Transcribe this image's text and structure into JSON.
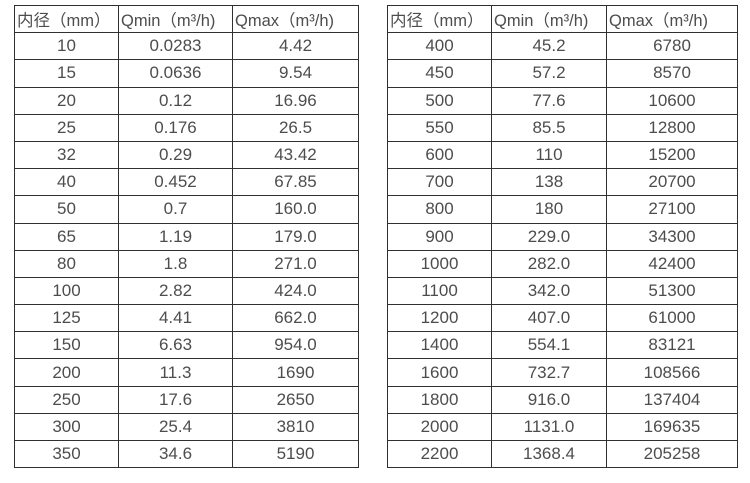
{
  "style": {
    "border_color": "#303030",
    "text_color": "#4d4d4d",
    "background_color": "#ffffff"
  },
  "tables": [
    {
      "name": "flow-table-small-diameters",
      "headers": [
        "内径（mm）",
        "Qmin（m³/h)",
        "Qmax（m³/h)"
      ],
      "rows": [
        [
          "10",
          "0.0283",
          "4.42"
        ],
        [
          "15",
          "0.0636",
          "9.54"
        ],
        [
          "20",
          "0.12",
          "16.96"
        ],
        [
          "25",
          "0.176",
          "26.5"
        ],
        [
          "32",
          "0.29",
          "43.42"
        ],
        [
          "40",
          "0.452",
          "67.85"
        ],
        [
          "50",
          "0.7",
          "160.0"
        ],
        [
          "65",
          "1.19",
          "179.0"
        ],
        [
          "80",
          "1.8",
          "271.0"
        ],
        [
          "100",
          "2.82",
          "424.0"
        ],
        [
          "125",
          "4.41",
          "662.0"
        ],
        [
          "150",
          "6.63",
          "954.0"
        ],
        [
          "200",
          "11.3",
          "1690"
        ],
        [
          "250",
          "17.6",
          "2650"
        ],
        [
          "300",
          "25.4",
          "3810"
        ],
        [
          "350",
          "34.6",
          "5190"
        ]
      ]
    },
    {
      "name": "flow-table-large-diameters",
      "headers": [
        "内径（mm）",
        "Qmin（m³/h)",
        "Qmax（m³/h)"
      ],
      "rows": [
        [
          "400",
          "45.2",
          "6780"
        ],
        [
          "450",
          "57.2",
          "8570"
        ],
        [
          "500",
          "77.6",
          "10600"
        ],
        [
          "550",
          "85.5",
          "12800"
        ],
        [
          "600",
          "110",
          "15200"
        ],
        [
          "700",
          "138",
          "20700"
        ],
        [
          "800",
          "180",
          "27100"
        ],
        [
          "900",
          "229.0",
          "34300"
        ],
        [
          "1000",
          "282.0",
          "42400"
        ],
        [
          "1100",
          "342.0",
          "51300"
        ],
        [
          "1200",
          "407.0",
          "61000"
        ],
        [
          "1400",
          "554.1",
          "83121"
        ],
        [
          "1600",
          "732.7",
          "108566"
        ],
        [
          "1800",
          "916.0",
          "137404"
        ],
        [
          "2000",
          "1131.0",
          "169635"
        ],
        [
          "2200",
          "1368.4",
          "205258"
        ]
      ]
    }
  ]
}
